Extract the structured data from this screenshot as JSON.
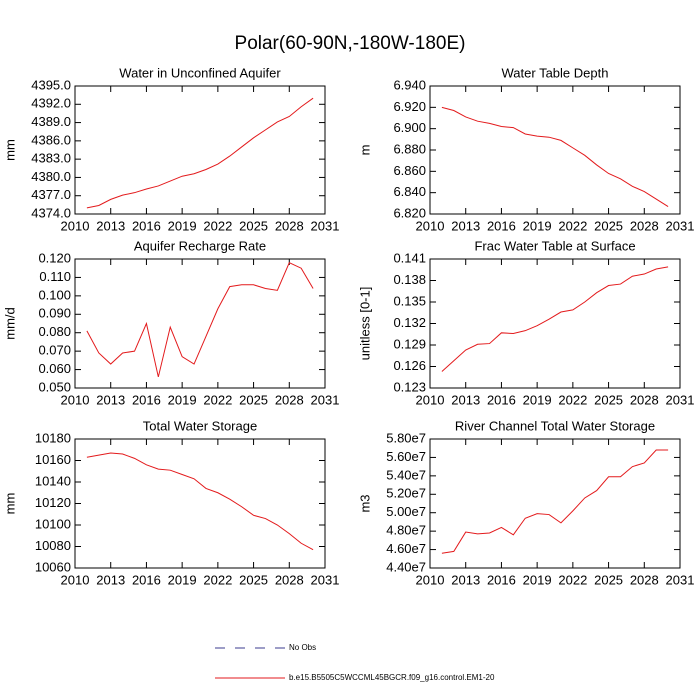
{
  "title": "Polar(60-90N,-180W-180E)",
  "legend": [
    {
      "name": "No Obs",
      "color": "#3b3b8f",
      "dash": true
    },
    {
      "name": "b.e15.B5505C5WCCML45BGCR.f09_g16.control.EM1-20",
      "color": "#e31a1c",
      "dash": false
    }
  ],
  "chart_data": [
    {
      "type": "line",
      "title": "Water in Unconfined Aquifer",
      "y_label": "mm",
      "color": "#e31a1c",
      "x": [
        2011,
        2012,
        2013,
        2014,
        2015,
        2016,
        2017,
        2018,
        2019,
        2020,
        2021,
        2022,
        2023,
        2024,
        2025,
        2026,
        2027,
        2028,
        2029,
        2030
      ],
      "values": [
        4375.0,
        4375.4,
        4376.4,
        4377.1,
        4377.5,
        4378.1,
        4378.6,
        4379.4,
        4380.2,
        4380.6,
        4381.3,
        4382.2,
        4383.5,
        4385.0,
        4386.5,
        4387.8,
        4389.1,
        4390.0,
        4391.6,
        4393.0
      ],
      "xlim": [
        2010,
        2031
      ],
      "xticks": [
        2010,
        2013,
        2016,
        2019,
        2022,
        2025,
        2028,
        2031
      ],
      "ylim": [
        4374,
        4395
      ],
      "yticks": [
        {
          "value": 4374,
          "label": "4374.0"
        },
        {
          "value": 4377,
          "label": "4377.0"
        },
        {
          "value": 4380,
          "label": "4380.0"
        },
        {
          "value": 4383,
          "label": "4383.0"
        },
        {
          "value": 4386,
          "label": "4386.0"
        },
        {
          "value": 4389,
          "label": "4389.0"
        },
        {
          "value": 4392,
          "label": "4392.0"
        },
        {
          "value": 4395,
          "label": "4395.0"
        }
      ]
    },
    {
      "type": "line",
      "title": "Water Table Depth",
      "y_label": "m",
      "color": "#e31a1c",
      "x": [
        2011,
        2012,
        2013,
        2014,
        2015,
        2016,
        2017,
        2018,
        2019,
        2020,
        2021,
        2022,
        2023,
        2024,
        2025,
        2026,
        2027,
        2028,
        2029,
        2030
      ],
      "values": [
        6.92,
        6.917,
        6.911,
        6.907,
        6.905,
        6.902,
        6.901,
        6.895,
        6.893,
        6.892,
        6.889,
        6.882,
        6.875,
        6.866,
        6.858,
        6.853,
        6.846,
        6.841,
        6.834,
        6.827
      ],
      "xlim": [
        2010,
        2031
      ],
      "xticks": [
        2010,
        2013,
        2016,
        2019,
        2022,
        2025,
        2028,
        2031
      ],
      "ylim": [
        6.82,
        6.94
      ],
      "yticks": [
        {
          "value": 6.82,
          "label": "6.820"
        },
        {
          "value": 6.84,
          "label": "6.840"
        },
        {
          "value": 6.86,
          "label": "6.860"
        },
        {
          "value": 6.88,
          "label": "6.880"
        },
        {
          "value": 6.9,
          "label": "6.900"
        },
        {
          "value": 6.92,
          "label": "6.920"
        },
        {
          "value": 6.94,
          "label": "6.940"
        }
      ]
    },
    {
      "type": "line",
      "title": "Aquifer Recharge Rate",
      "y_label": "mm/d",
      "color": "#e31a1c",
      "x": [
        2011,
        2012,
        2013,
        2014,
        2015,
        2016,
        2017,
        2018,
        2019,
        2020,
        2021,
        2022,
        2023,
        2024,
        2025,
        2026,
        2027,
        2028,
        2029,
        2030
      ],
      "values": [
        0.081,
        0.069,
        0.063,
        0.069,
        0.07,
        0.085,
        0.056,
        0.083,
        0.067,
        0.063,
        0.078,
        0.093,
        0.105,
        0.106,
        0.106,
        0.104,
        0.103,
        0.118,
        0.115,
        0.104
      ],
      "xlim": [
        2010,
        2031
      ],
      "xticks": [
        2010,
        2013,
        2016,
        2019,
        2022,
        2025,
        2028,
        2031
      ],
      "ylim": [
        0.05,
        0.12
      ],
      "yticks": [
        {
          "value": 0.05,
          "label": "0.050"
        },
        {
          "value": 0.06,
          "label": "0.060"
        },
        {
          "value": 0.07,
          "label": "0.070"
        },
        {
          "value": 0.08,
          "label": "0.080"
        },
        {
          "value": 0.09,
          "label": "0.090"
        },
        {
          "value": 0.1,
          "label": "0.100"
        },
        {
          "value": 0.11,
          "label": "0.110"
        },
        {
          "value": 0.12,
          "label": "0.120"
        }
      ]
    },
    {
      "type": "line",
      "title": "Frac Water Table at Surface",
      "y_label": "unitless [0-1]",
      "color": "#e31a1c",
      "x": [
        2011,
        2012,
        2013,
        2014,
        2015,
        2016,
        2017,
        2018,
        2019,
        2020,
        2021,
        2022,
        2023,
        2024,
        2025,
        2026,
        2027,
        2028,
        2029,
        2030
      ],
      "values": [
        0.1253,
        0.1268,
        0.1283,
        0.1291,
        0.1292,
        0.1307,
        0.1306,
        0.131,
        0.1317,
        0.1326,
        0.1336,
        0.1339,
        0.135,
        0.1363,
        0.1373,
        0.1375,
        0.1386,
        0.1389,
        0.1396,
        0.1399
      ],
      "xlim": [
        2010,
        2031
      ],
      "xticks": [
        2010,
        2013,
        2016,
        2019,
        2022,
        2025,
        2028,
        2031
      ],
      "ylim": [
        0.123,
        0.141
      ],
      "yticks": [
        0.123,
        0.126,
        0.129,
        0.132,
        0.135,
        {
          "value": 0.138,
          "label": "0.138"
        },
        0.141
      ]
    },
    {
      "type": "line",
      "title": "Total Water Storage",
      "y_label": "mm",
      "color": "#e31a1c",
      "x": [
        2011,
        2012,
        2013,
        2014,
        2015,
        2016,
        2017,
        2018,
        2019,
        2020,
        2021,
        2022,
        2023,
        2024,
        2025,
        2026,
        2027,
        2028,
        2029,
        2030
      ],
      "values": [
        10163,
        10165,
        10167,
        10166,
        10162,
        10156,
        10152,
        10151,
        10147,
        10143,
        10134,
        10130,
        10124,
        10117,
        10109,
        10106,
        10100,
        10092,
        10083,
        10077
      ],
      "xlim": [
        2010,
        2031
      ],
      "xticks": [
        2010,
        2013,
        2016,
        2019,
        2022,
        2025,
        2028,
        2031
      ],
      "ylim": [
        10060,
        10180
      ],
      "yticks": [
        10060,
        10080,
        10100,
        10120,
        10140,
        10160,
        10180
      ]
    },
    {
      "type": "line",
      "title": "River Channel Total Water Storage",
      "y_label": "m3",
      "color": "#e31a1c",
      "x": [
        2011,
        2012,
        2013,
        2014,
        2015,
        2016,
        2017,
        2018,
        2019,
        2020,
        2021,
        2022,
        2023,
        2024,
        2025,
        2026,
        2027,
        2028,
        2029,
        2030
      ],
      "values": [
        45600000,
        45800000,
        47900000,
        47700000,
        47800000,
        48400000,
        47600000,
        49400000,
        49900000,
        49800000,
        48900000,
        50200000,
        51600000,
        52400000,
        53900000,
        53900000,
        55000000,
        55400000,
        56800000,
        56800000
      ],
      "xlim": [
        2010,
        2031
      ],
      "xticks": [
        2010,
        2013,
        2016,
        2019,
        2022,
        2025,
        2028,
        2031
      ],
      "ylim": [
        44000000,
        58000000
      ],
      "yticks": [
        {
          "value": 44000000,
          "label": "4.40e7"
        },
        {
          "value": 46000000,
          "label": "4.60e7"
        },
        {
          "value": 48000000,
          "label": "4.80e7"
        },
        {
          "value": 50000000,
          "label": "5.00e7"
        },
        {
          "value": 52000000,
          "label": "5.20e7"
        },
        {
          "value": 54000000,
          "label": "5.40e7"
        },
        {
          "value": 56000000,
          "label": "5.60e7"
        },
        {
          "value": 58000000,
          "label": "5.80e7"
        }
      ]
    }
  ]
}
